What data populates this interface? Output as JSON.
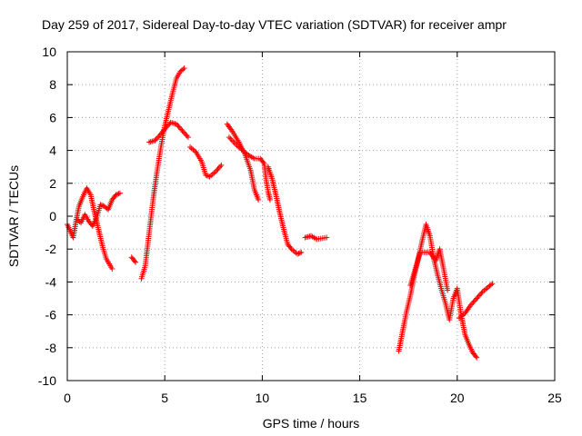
{
  "chart_data": {
    "type": "scatter",
    "title": "Day 259 of 2017, Sidereal Day-to-day VTEC variation (SDTVAR) for receiver ampr",
    "xlabel": "GPS time / hours",
    "ylabel": "SDTVAR / TECUs",
    "xlim": [
      0,
      25
    ],
    "ylim": [
      -10,
      10
    ],
    "xticks": [
      "0",
      "5",
      "10",
      "15",
      "20",
      "25"
    ],
    "yticks": [
      "-10",
      "-8",
      "-6",
      "-4",
      "-2",
      "0",
      "2",
      "4",
      "6",
      "8",
      "10"
    ],
    "grid": true,
    "marker": "+",
    "color": "#ff0000",
    "series": [
      {
        "segments": [
          [
            [
              0.0,
              -0.5
            ],
            [
              0.15,
              -0.9
            ],
            [
              0.3,
              -1.3
            ],
            [
              0.45,
              -0.3
            ],
            [
              0.6,
              0.6
            ],
            [
              0.8,
              1.2
            ],
            [
              1.0,
              1.7
            ],
            [
              1.2,
              1.3
            ],
            [
              1.4,
              0.2
            ],
            [
              1.6,
              -0.8
            ],
            [
              1.8,
              -1.8
            ],
            [
              2.0,
              -2.6
            ],
            [
              2.3,
              -3.2
            ]
          ],
          [
            [
              0.5,
              -0.2
            ],
            [
              0.7,
              -0.4
            ],
            [
              0.9,
              0.1
            ],
            [
              1.1,
              -0.3
            ],
            [
              1.3,
              -0.6
            ],
            [
              1.5,
              -0.1
            ],
            [
              1.7,
              0.7
            ],
            [
              1.9,
              0.6
            ],
            [
              2.1,
              0.4
            ],
            [
              2.3,
              1.0
            ],
            [
              2.5,
              1.3
            ],
            [
              2.7,
              1.4
            ]
          ],
          [
            [
              3.3,
              -2.5
            ],
            [
              3.5,
              -2.8
            ]
          ],
          [
            [
              3.8,
              -3.8
            ],
            [
              4.0,
              -3.0
            ],
            [
              4.2,
              -1.0
            ],
            [
              4.4,
              1.0
            ],
            [
              4.6,
              2.7
            ],
            [
              4.8,
              4.2
            ],
            [
              5.0,
              5.5
            ],
            [
              5.2,
              6.5
            ],
            [
              5.4,
              7.5
            ],
            [
              5.6,
              8.4
            ],
            [
              5.8,
              8.8
            ],
            [
              6.0,
              9.0
            ]
          ],
          [
            [
              4.2,
              4.5
            ],
            [
              4.5,
              4.6
            ],
            [
              4.8,
              5.0
            ],
            [
              5.0,
              5.3
            ],
            [
              5.3,
              5.7
            ],
            [
              5.6,
              5.6
            ],
            [
              5.9,
              5.2
            ],
            [
              6.2,
              4.8
            ]
          ],
          [
            [
              6.3,
              4.2
            ],
            [
              6.6,
              3.9
            ],
            [
              6.9,
              3.3
            ],
            [
              7.1,
              2.5
            ],
            [
              7.3,
              2.4
            ],
            [
              7.6,
              2.7
            ],
            [
              7.9,
              3.1
            ]
          ],
          [
            [
              8.2,
              5.6
            ],
            [
              8.5,
              5.1
            ],
            [
              8.8,
              4.5
            ],
            [
              9.1,
              3.8
            ],
            [
              9.4,
              2.8
            ],
            [
              9.6,
              1.6
            ],
            [
              9.8,
              1.0
            ]
          ],
          [
            [
              8.3,
              4.8
            ],
            [
              8.7,
              4.3
            ],
            [
              9.0,
              4.0
            ],
            [
              9.3,
              3.7
            ],
            [
              9.6,
              3.5
            ],
            [
              9.9,
              3.5
            ],
            [
              10.1,
              3.2
            ],
            [
              10.2,
              2.2
            ],
            [
              10.3,
              1.5
            ],
            [
              10.4,
              1.0
            ]
          ],
          [
            [
              10.3,
              3.0
            ],
            [
              10.5,
              2.3
            ],
            [
              10.7,
              1.3
            ],
            [
              10.9,
              0.2
            ],
            [
              11.1,
              -0.8
            ],
            [
              11.3,
              -1.7
            ],
            [
              11.5,
              -2.0
            ],
            [
              11.8,
              -2.3
            ],
            [
              12.0,
              -2.2
            ]
          ],
          [
            [
              12.2,
              -1.3
            ],
            [
              12.5,
              -1.2
            ],
            [
              12.8,
              -1.4
            ],
            [
              13.3,
              -1.3
            ]
          ],
          [
            [
              17.0,
              -8.2
            ],
            [
              17.2,
              -7.0
            ],
            [
              17.4,
              -5.8
            ],
            [
              17.6,
              -4.8
            ],
            [
              17.8,
              -3.6
            ],
            [
              18.0,
              -2.6
            ],
            [
              18.2,
              -1.5
            ],
            [
              18.4,
              -0.5
            ],
            [
              18.6,
              -1.2
            ],
            [
              18.8,
              -2.6
            ],
            [
              19.0,
              -3.6
            ],
            [
              19.2,
              -4.5
            ],
            [
              19.4,
              -5.3
            ],
            [
              19.6,
              -6.3
            ],
            [
              19.8,
              -5.0
            ],
            [
              20.0,
              -4.4
            ],
            [
              20.2,
              -6.0
            ],
            [
              20.4,
              -7.2
            ],
            [
              20.6,
              -7.8
            ],
            [
              20.8,
              -8.3
            ],
            [
              21.0,
              -8.6
            ]
          ],
          [
            [
              17.6,
              -4.2
            ],
            [
              17.9,
              -3.0
            ],
            [
              18.1,
              -2.2
            ],
            [
              18.3,
              -2.2
            ],
            [
              18.6,
              -2.2
            ],
            [
              18.9,
              -2.7
            ],
            [
              19.1,
              -2.0
            ],
            [
              19.3,
              -3.2
            ],
            [
              19.5,
              -4.5
            ]
          ],
          [
            [
              20.1,
              -6.2
            ],
            [
              20.4,
              -5.9
            ],
            [
              20.7,
              -5.4
            ],
            [
              21.0,
              -5.0
            ],
            [
              21.3,
              -4.6
            ],
            [
              21.6,
              -4.3
            ],
            [
              21.8,
              -4.1
            ]
          ]
        ]
      }
    ]
  }
}
